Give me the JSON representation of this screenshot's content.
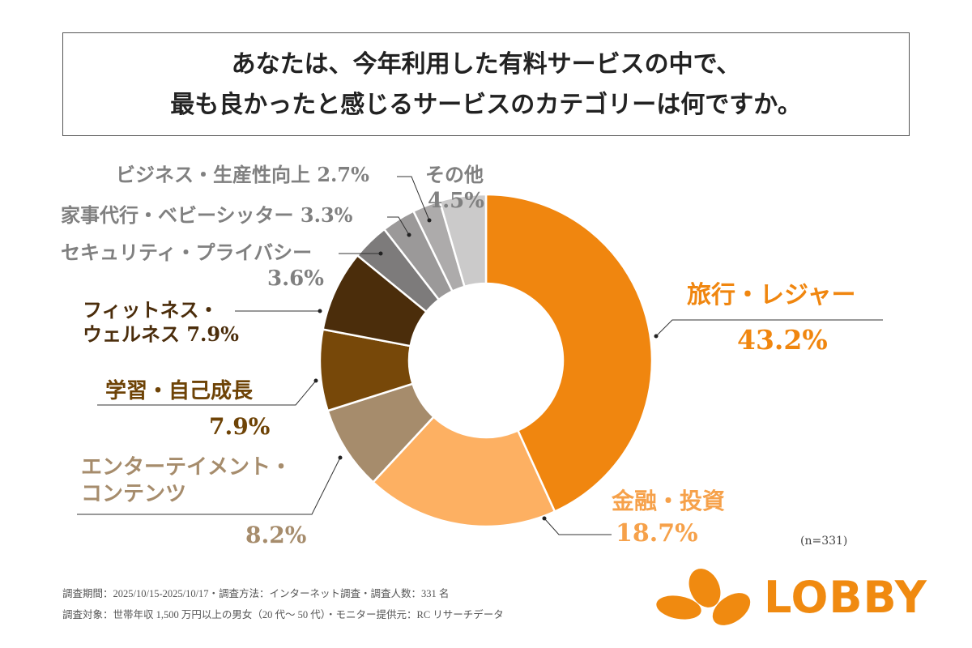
{
  "title": {
    "line1": "あなたは、今年利用した有料サービスの中で、",
    "line2": "最も良かったと感じるサービスのカテゴリーは何ですか。"
  },
  "chart_data": {
    "type": "pie",
    "donut": true,
    "slices": [
      {
        "label": "旅行・レジャー",
        "value": 43.2,
        "value_label": "43.2%",
        "color": "#f0860f"
      },
      {
        "label": "金融・投資",
        "value": 18.7,
        "value_label": "18.7%",
        "color": "#fdb062"
      },
      {
        "label": "エンターテイメント・コンテンツ",
        "value": 8.2,
        "value_label": "8.2%",
        "color": "#a68c6c"
      },
      {
        "label": "学習・自己成長",
        "value": 7.9,
        "value_label": "7.9%",
        "color": "#774809"
      },
      {
        "label": "フィットネス・ウェルネス",
        "value": 7.9,
        "value_label": "7.9%",
        "color": "#4b2d0b"
      },
      {
        "label": "セキュリティ・プライバシー",
        "value": 3.6,
        "value_label": "3.6%",
        "color": "#7d7b7b"
      },
      {
        "label": "家事代行・ベビーシッター",
        "value": 3.3,
        "value_label": "3.3%",
        "color": "#9b9999"
      },
      {
        "label": "ビジネス・生産性向上",
        "value": 2.7,
        "value_label": "2.7%",
        "color": "#adabab"
      },
      {
        "label": "その他",
        "value": 4.5,
        "value_label": "4.5%",
        "color": "#cbcaca"
      }
    ],
    "label_colors": {
      "orange": "#f0860f",
      "light_orange": "#f6a14a",
      "tan": "#a68c6c",
      "brown": "#6e4306",
      "dark_brown": "#4b2d0b",
      "gray": "#808080"
    }
  },
  "label_text": {
    "ent_line1": "エンターテイメント・",
    "ent_line2": "コンテンツ",
    "fit_line1": "フィットネス・",
    "fit_line2": "ウェルネス"
  },
  "sample": "(n=331)",
  "footer": {
    "line1": "調査期間：2025/10/15-2025/10/17・調査方法：インターネット調査・調査人数：331 名",
    "line2": "調査対象：世帯年収 1,500 万円以上の男女（20 代〜 50 代）・モニター提供元：RC リサーチデータ"
  },
  "logo": {
    "text": "LOBBY",
    "color": "#f08a10"
  }
}
